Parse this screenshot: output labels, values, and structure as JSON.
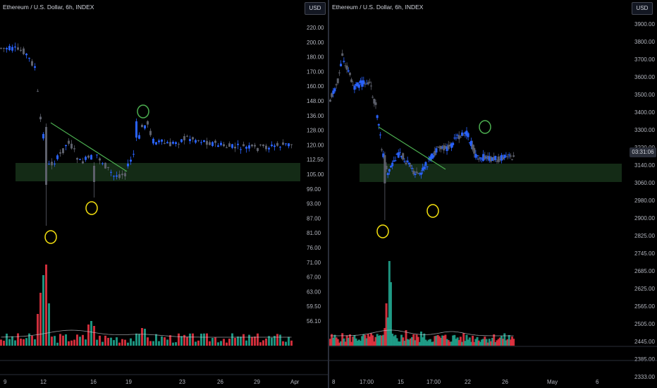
{
  "colors": {
    "up": "#2962ff",
    "down": "#5d606b",
    "vol_up": "#22ab94",
    "vol_down": "#f23645",
    "zone": "#1b3a1e",
    "trend": "#4caf50",
    "circle_yellow": "#f5e10f",
    "circle_green": "#4caf50"
  },
  "left_chart": {
    "title": "Ethereum / U.S. Dollar, 6h, INDEX",
    "currency_button": "USD",
    "price_axis": [
      "220.00",
      "200.00",
      "180.00",
      "170.00",
      "160.00",
      "148.00",
      "136.00",
      "128.00",
      "120.00",
      "112.50",
      "105.00",
      "99.00",
      "93.00",
      "87.00",
      "81.00",
      "76.00",
      "71.00",
      "67.00",
      "63.00",
      "59.50",
      "56.10"
    ],
    "time_axis": [
      "9",
      "12",
      "16",
      "19",
      "23",
      "26",
      "29",
      "Apr"
    ]
  },
  "right_chart": {
    "title": "Ethereum / U.S. Dollar, 6h, INDEX",
    "currency_button": "USD",
    "price_axis": [
      "3900.00",
      "3800.00",
      "3700.00",
      "3600.00",
      "3500.00",
      "3400.00",
      "3300.00",
      "3220.00",
      "3140.00",
      "3060.00",
      "2980.00",
      "2900.00",
      "2825.00",
      "2745.00",
      "2685.00",
      "2625.00",
      "2565.00",
      "2505.00",
      "2445.00",
      "2385.00",
      "2333.00"
    ],
    "countdown": "03:31:06",
    "time_axis": [
      "8",
      "17:00",
      "15",
      "17:00",
      "22",
      "26",
      "May",
      "6"
    ]
  }
}
